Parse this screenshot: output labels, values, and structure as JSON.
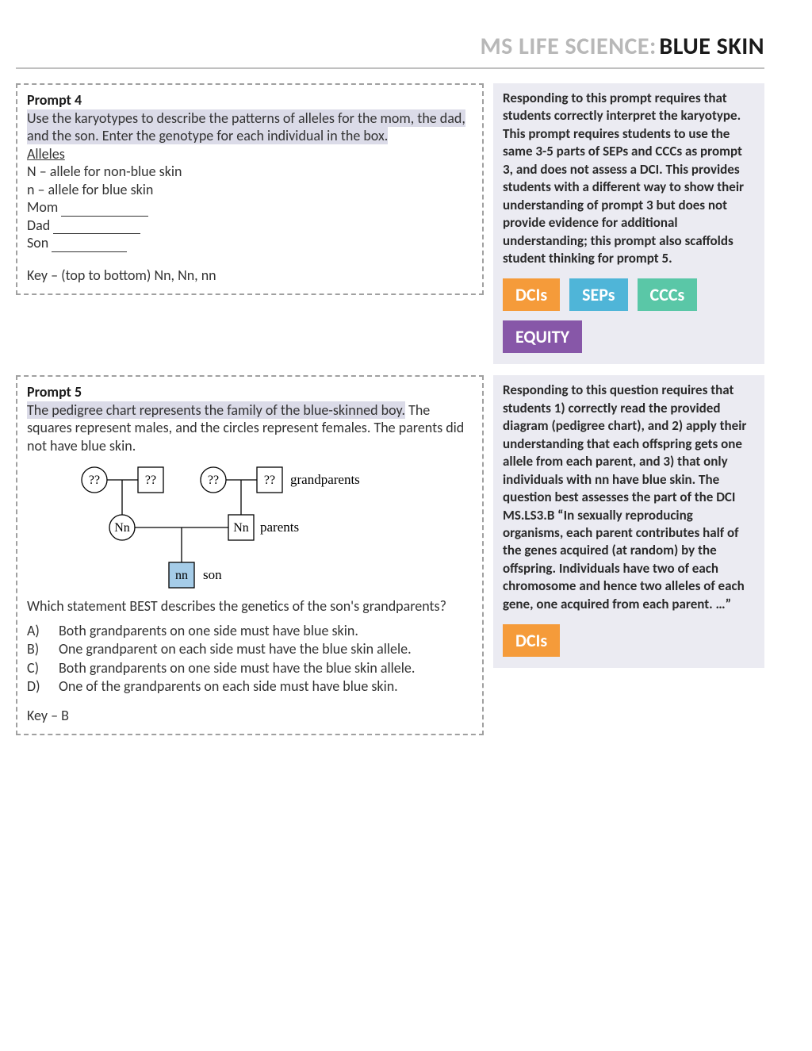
{
  "header": {
    "light": "MS LIFE SCIENCE:",
    "dark": "BLUE SKIN"
  },
  "prompt4": {
    "title": "Prompt 4",
    "instruction": "Use the karyotypes to describe the patterns of alleles for the mom, the dad, and the son. Enter the genotype for each individual in the box.",
    "alleles_heading": "Alleles",
    "allele_N": "N – allele for non-blue skin",
    "allele_n": "n – allele for blue skin",
    "mom_label": "Mom ",
    "dad_label": "Dad ",
    "son_label": "Son ",
    "key_line": "Key – (top to bottom) Nn, Nn, nn"
  },
  "side4": {
    "text": "Responding to this prompt requires that students correctly interpret the karyotype. This prompt requires students to use the same 3-5 parts of SEPs and CCCs as prompt 3, and does not assess a DCI. This provides students with a different way to show their understanding of prompt 3 but does not provide evidence for additional understanding; this prompt also scaffolds student thinking for prompt 5.",
    "badges": [
      {
        "label": "DCIs",
        "color": "#f59b3a"
      },
      {
        "label": "SEPs",
        "color": "#4fb5d8"
      },
      {
        "label": "CCCs",
        "color": "#5ac7a7"
      },
      {
        "label": "EQUITY",
        "color": "#8757a8"
      }
    ]
  },
  "prompt5": {
    "title": "Prompt 5",
    "instruction_pt1": "The pedigree chart represents the family of the blue-skinned boy.",
    "instruction_pt2": " The squares represent males, and the circles represent females. The parents did not have blue skin.",
    "question": "Which statement BEST describes the genetics of the son's grandparents?",
    "options": [
      {
        "letter": "A)",
        "text": "Both grandparents on one side must have blue skin."
      },
      {
        "letter": "B)",
        "text": "One grandparent on each side must have the blue skin allele."
      },
      {
        "letter": "C)",
        "text": "Both grandparents on one side must have the blue skin allele."
      },
      {
        "letter": "D)",
        "text": "One of the grandparents on each side must have blue skin."
      }
    ],
    "key_line": "Key – B",
    "pedigree": {
      "son_fill": "#a5cce8",
      "labels": {
        "grandparents": "grandparents",
        "parents": "parents",
        "son": "son",
        "unknown": "??",
        "parent_genotype": "Nn",
        "son_genotype": "nn"
      }
    }
  },
  "side5": {
    "text": "Responding to this question requires that students 1) correctly read the provided diagram (pedigree chart), and 2) apply their understanding that each offspring gets one allele from each parent, and 3) that only individuals with nn have blue skin. The question best assesses the part of the DCI MS.LS3.B “In sexually reproducing organisms, each parent contributes half of the genes acquired (at random) by the offspring. Individuals have two of each chromosome and hence two alleles of each gene, one acquired from each parent. …”",
    "badges": [
      {
        "label": "DCIs",
        "color": "#f59b3a"
      }
    ]
  }
}
